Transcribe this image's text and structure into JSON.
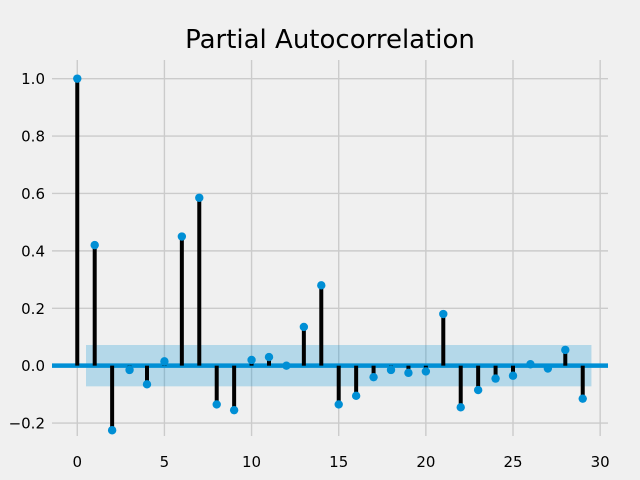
{
  "chart_data": {
    "type": "stem",
    "title": "Partial Autocorrelation",
    "xlabel": "",
    "ylabel": "",
    "xlim": [
      -1.45,
      30.45
    ],
    "ylim": [
      -0.245,
      1.065
    ],
    "x_ticks": [
      0,
      5,
      10,
      15,
      20,
      25,
      30
    ],
    "y_ticks": [
      -0.2,
      0.0,
      0.2,
      0.4,
      0.6,
      0.8,
      1.0
    ],
    "x_tick_labels": [
      "0",
      "5",
      "10",
      "15",
      "20",
      "25",
      "30"
    ],
    "y_tick_labels": [
      "−0.2",
      "0.0",
      "0.2",
      "0.4",
      "0.6",
      "0.8",
      "1.0"
    ],
    "grid": true,
    "confidence_band": {
      "x_start": 0.5,
      "x_end": 29.5,
      "lower": -0.072,
      "upper": 0.072
    },
    "series": [
      {
        "lags": [
          0,
          1,
          2,
          3,
          4,
          5,
          6,
          7,
          8,
          9,
          10,
          11,
          12,
          13,
          14,
          15,
          16,
          17,
          18,
          19,
          20,
          21,
          22,
          23,
          24,
          25,
          26,
          27,
          28,
          29
        ],
        "values": [
          1.0,
          0.42,
          -0.225,
          -0.015,
          -0.065,
          0.015,
          0.45,
          0.585,
          -0.135,
          -0.155,
          0.02,
          0.03,
          0.0,
          0.135,
          0.28,
          -0.135,
          -0.105,
          -0.04,
          -0.015,
          -0.025,
          -0.02,
          0.18,
          -0.145,
          -0.085,
          -0.045,
          -0.035,
          0.005,
          -0.01,
          0.055,
          -0.115
        ]
      }
    ],
    "colors": {
      "stem": "#000000",
      "marker": "#008fd5",
      "band": "#008fd5",
      "zero_line": "#008fd5",
      "grid": "#cbcbcb",
      "background": "#f0f0f0"
    }
  }
}
